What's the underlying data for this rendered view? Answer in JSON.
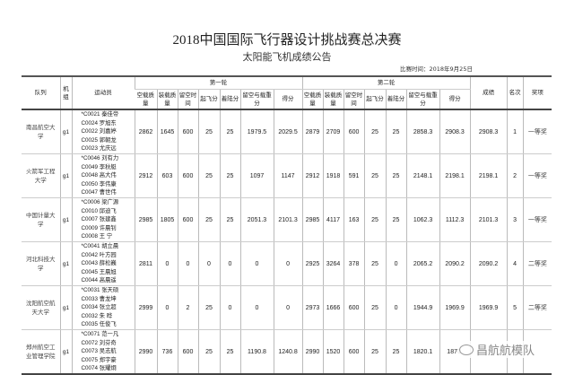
{
  "title": "2018中国国际飞行器设计挑战赛总决赛",
  "subtitle": "太阳能飞机成绩公告",
  "date": "比赛时间：2018年9月25日",
  "headers": {
    "team": "队列",
    "crew": "机组",
    "members": "运动员",
    "round1": "第一轮",
    "round2": "第二轮",
    "sub": [
      "空载质量",
      "装载质量",
      "留空时间",
      "起飞分",
      "着陆分",
      "留空与载重分",
      "得分"
    ],
    "result": "成绩",
    "rank": "名次",
    "award": "奖项"
  },
  "rows": [
    {
      "team": "南昌航空大学",
      "crew": "g1",
      "members": [
        "*C0021 秦佳帝",
        "C0024 罗旭东",
        "C0022 刘嘉婷",
        "C0025 郭朝龙",
        "C0023 尤庆远"
      ],
      "r1": [
        "2862",
        "1645",
        "600",
        "25",
        "25",
        "1979.5",
        "2029.5"
      ],
      "r2": [
        "2879",
        "2709",
        "600",
        "25",
        "25",
        "2858.3",
        "2908.3"
      ],
      "result": "2908.3",
      "rank": "1",
      "award": "一等奖"
    },
    {
      "team": "火箭军工程大学",
      "crew": "g1",
      "members": [
        "*C0046 刘有力",
        "C0049 李秋艇",
        "C0048 高大伟",
        "C0050 李伟康",
        "C0047 曹世伟"
      ],
      "r1": [
        "2912",
        "603",
        "600",
        "25",
        "25",
        "1097",
        "1147"
      ],
      "r2": [
        "2912",
        "1918",
        "591",
        "25",
        "25",
        "2148.1",
        "2198.1"
      ],
      "result": "2198.1",
      "rank": "2",
      "award": "一等奖"
    },
    {
      "team": "中国计量大学",
      "crew": "g1",
      "members": [
        "*C0006 梁广源",
        "C0010 邱迪飞",
        "C0007 张建鑫",
        "C0009 许晨钊",
        "C0008 王 宁"
      ],
      "r1": [
        "2985",
        "1805",
        "600",
        "25",
        "25",
        "2051.3",
        "2101.3"
      ],
      "r2": [
        "2985",
        "4117",
        "163",
        "25",
        "25",
        "1062.3",
        "1112.3"
      ],
      "result": "2101.3",
      "rank": "3",
      "award": "一等奖"
    },
    {
      "team": "河北科技大学",
      "crew": "g1",
      "members": [
        "*C0041 胡立晨",
        "C0042 叶方园",
        "C0043 薛松巍",
        "C0045 王晨旭",
        "C0044 高晨遥"
      ],
      "r1": [
        "2811",
        "0",
        "0",
        "0",
        "0",
        "0",
        "0"
      ],
      "r2": [
        "2925",
        "3264",
        "378",
        "25",
        "0",
        "2065.2",
        "2090.2"
      ],
      "result": "2090.2",
      "rank": "4",
      "award": "二等奖"
    },
    {
      "team": "沈阳航空航天大学",
      "crew": "g1",
      "members": [
        "*C0031 张天硕",
        "C0033 曹龙坤",
        "C0034 张立超",
        "C0032 朱 晔",
        "C0035 任俊飞"
      ],
      "r1": [
        "2999",
        "0",
        "2",
        "25",
        "0",
        "0",
        "0"
      ],
      "r2": [
        "2973",
        "1666",
        "600",
        "25",
        "0",
        "1944.9",
        "1969.9"
      ],
      "result": "1969.9",
      "rank": "5",
      "award": "二等奖"
    },
    {
      "team": "郑州航空工业管理学院",
      "crew": "g1",
      "members": [
        "*C0071 范一凡",
        "C0072 刘芬奇",
        "C0073 吴志航",
        "C0075 郑宇豪",
        "C0074 张耀炯"
      ],
      "r1": [
        "2990",
        "736",
        "600",
        "25",
        "25",
        "1190.8",
        "1240.8"
      ],
      "r2": [
        "2990",
        "1520",
        "600",
        "25",
        "25",
        "1820.1",
        "1870."
      ],
      "result": "",
      "rank": "",
      "award": ""
    }
  ],
  "watermark": "昌航航模队"
}
